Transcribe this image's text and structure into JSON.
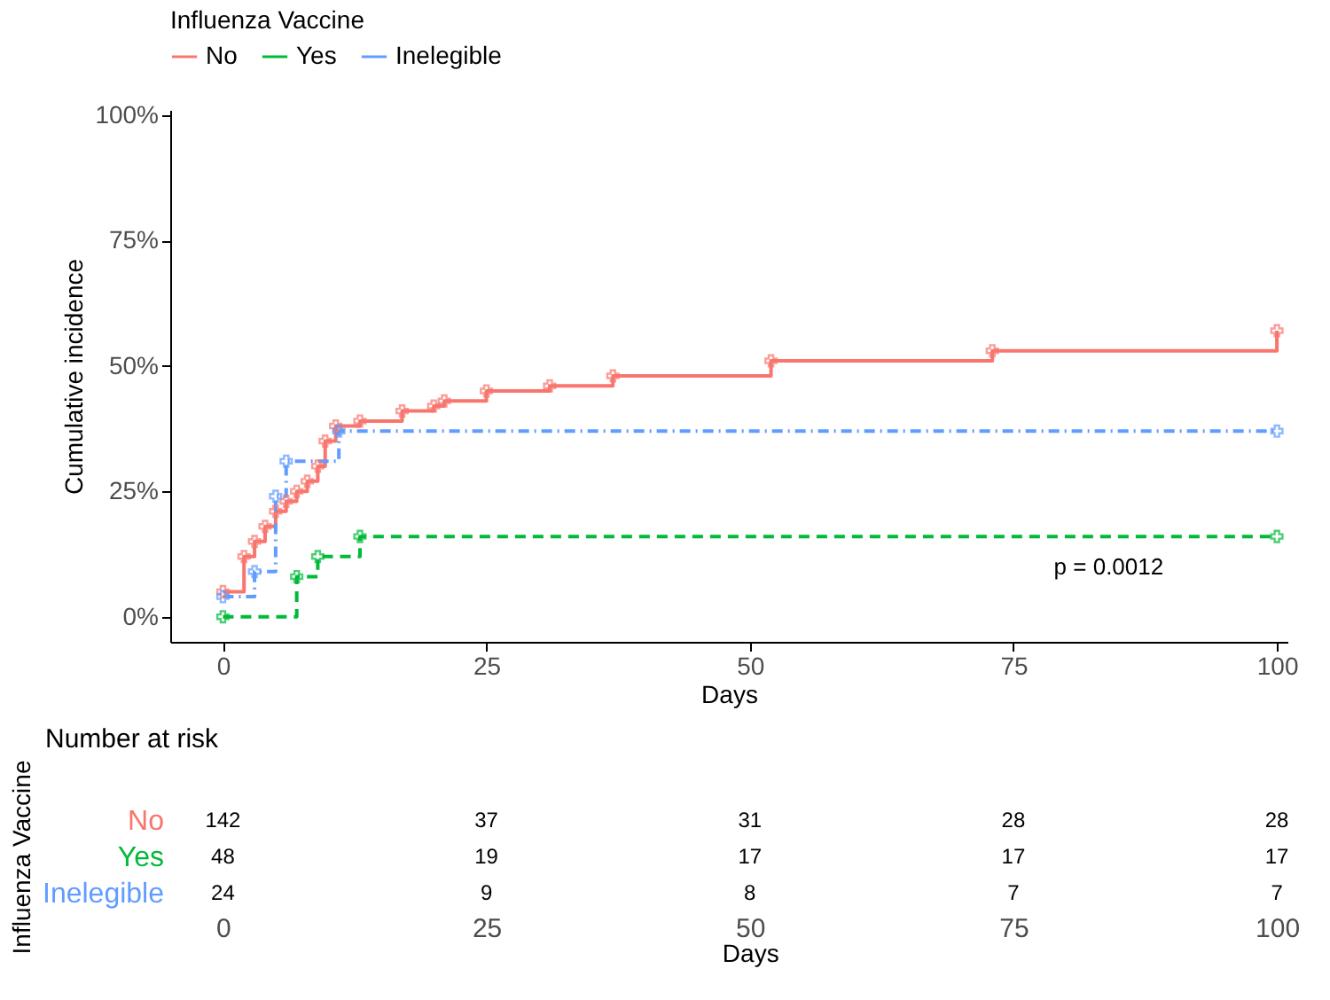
{
  "chart_data": [
    {
      "type": "step",
      "xlabel": "Days",
      "ylabel": "Cumulative incidence",
      "legend_title": "Influenza Vaccine",
      "legend": "top",
      "grid": false,
      "marker": "cross",
      "xlim": [
        -5,
        101
      ],
      "xticks": [
        0,
        25,
        50,
        75,
        100
      ],
      "ylim": [
        -5,
        101
      ],
      "yticks": [
        {
          "value": 0,
          "label": "0%"
        },
        {
          "value": 25,
          "label": "25%"
        },
        {
          "value": 50,
          "label": "50%"
        },
        {
          "value": 75,
          "label": "75%"
        },
        {
          "value": 100,
          "label": "100%"
        }
      ],
      "series": [
        {
          "name": "No",
          "color": "#f8766d",
          "line_style": "solid",
          "x": [
            0,
            2,
            3,
            4,
            5,
            6,
            7,
            8,
            9,
            9.7,
            10.7,
            13,
            17,
            20,
            21,
            25,
            31,
            37,
            52,
            73,
            100
          ],
          "values": [
            5,
            12,
            15,
            18,
            21,
            23,
            25,
            27,
            30,
            35,
            38,
            39,
            41,
            42,
            43,
            45,
            46,
            48,
            51,
            53,
            57
          ]
        },
        {
          "name": "Yes",
          "color": "#00ba38",
          "line_style": "dashed",
          "x": [
            0,
            7,
            9,
            13,
            100
          ],
          "values": [
            0,
            8,
            12,
            16,
            16
          ]
        },
        {
          "name": "Inelegible",
          "color": "#619cff",
          "line_style": "dotted",
          "x": [
            0,
            3,
            5,
            6,
            11,
            100
          ],
          "values": [
            4,
            9,
            24,
            31,
            37,
            37
          ]
        }
      ],
      "annotations": [
        "p = 0.0012"
      ]
    },
    {
      "type": "heatmap",
      "data_labels": true,
      "title": "Number at risk",
      "ylabel": "Influenza Vaccine",
      "xlabel": "Days",
      "categories": [
        "0",
        "25",
        "50",
        "75",
        "100"
      ],
      "y_categories": [
        "No",
        "Yes",
        "Inelegible"
      ],
      "colors": [
        "#f8766d",
        "#00ba38",
        "#619cff"
      ],
      "cells": [
        [
          142,
          37,
          31,
          28,
          28
        ],
        [
          48,
          19,
          17,
          17,
          17
        ],
        [
          24,
          9,
          8,
          7,
          7
        ]
      ]
    }
  ]
}
